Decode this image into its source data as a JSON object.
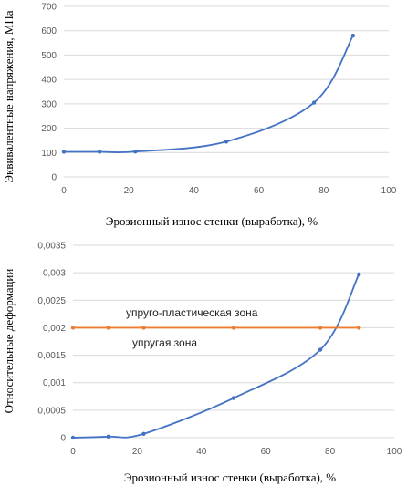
{
  "chart_data": [
    {
      "type": "line",
      "title": "",
      "xlabel": "Эрозионный износ стенки (выработка), %",
      "ylabel": "Эквивалентные напряжения, МПа",
      "xlim": [
        0,
        100
      ],
      "ylim": [
        0,
        700
      ],
      "x_ticks": [
        "0",
        "20",
        "40",
        "60",
        "80",
        "100"
      ],
      "y_ticks": [
        "0",
        "100",
        "200",
        "300",
        "400",
        "500",
        "600",
        "700"
      ],
      "grid": "horizontal",
      "smooth": true,
      "series": [
        {
          "color": "#4472c4",
          "x": [
            0,
            11,
            22,
            50,
            77,
            89
          ],
          "y": [
            103,
            103,
            104,
            145,
            305,
            580
          ]
        }
      ]
    },
    {
      "type": "line",
      "title": "",
      "xlabel": "Эрозионный износ стенки (выработка), %",
      "ylabel": "Относительные деформации",
      "xlim": [
        0,
        100
      ],
      "ylim": [
        0,
        0.0035
      ],
      "x_ticks": [
        "0",
        "20",
        "40",
        "60",
        "80",
        "100"
      ],
      "y_ticks": [
        "0",
        "0,0005",
        "0,001",
        "0,0015",
        "0,002",
        "0,0025",
        "0,003",
        "0,0035"
      ],
      "grid": "horizontal",
      "smooth": true,
      "annotations": [
        "упруго-пластическая зона",
        "упругая зона"
      ],
      "series": [
        {
          "color": "#4472c4",
          "x": [
            0,
            11,
            22,
            50,
            77,
            89
          ],
          "y": [
            0,
            2e-05,
            7e-05,
            0.00072,
            0.0016,
            0.00297
          ]
        },
        {
          "color": "#ed7d31",
          "x": [
            0,
            11,
            22,
            50,
            77,
            89
          ],
          "y": [
            0.002,
            0.002,
            0.002,
            0.002,
            0.002,
            0.002
          ]
        }
      ]
    }
  ]
}
